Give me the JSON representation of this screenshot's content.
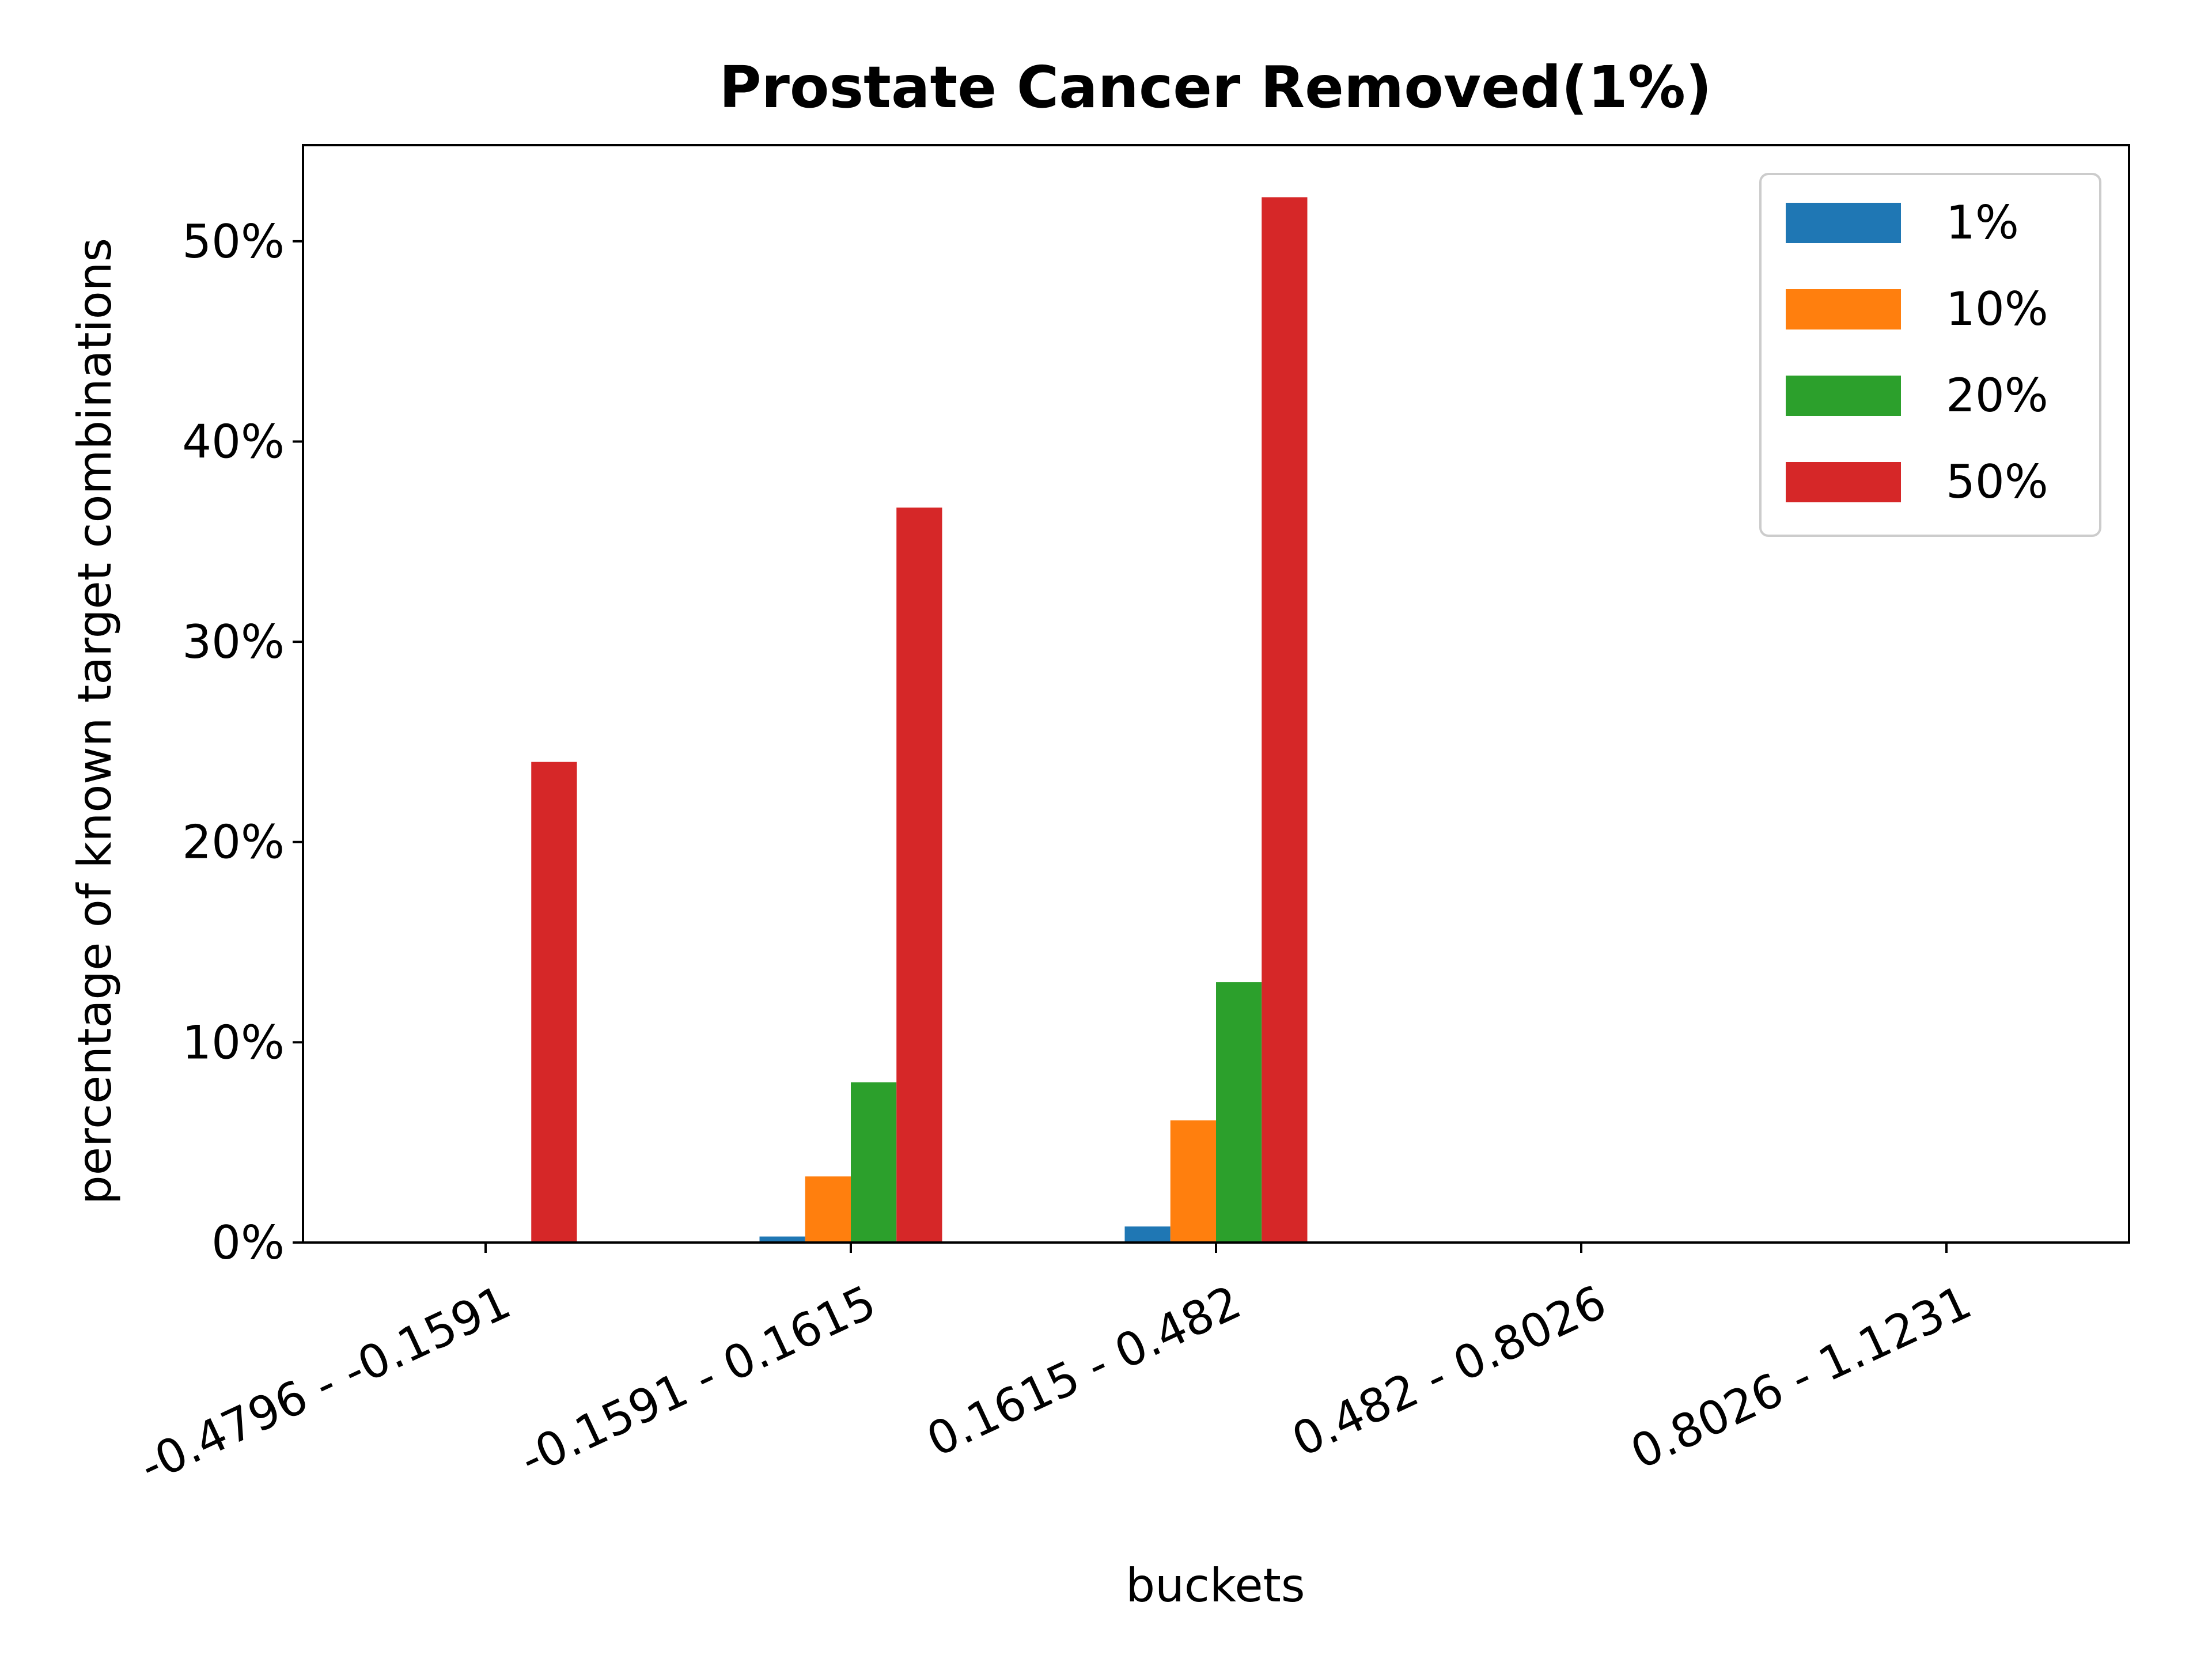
{
  "chart_data": {
    "type": "bar",
    "title": "Prostate Cancer Removed(1%)",
    "xlabel": "buckets",
    "ylabel": "percentage of known target combinations",
    "categories": [
      "-0.4796 - -0.1591",
      "-0.1591 - 0.1615",
      "0.1615 - 0.482",
      "0.482 - 0.8026",
      "0.8026 - 1.1231"
    ],
    "series": [
      {
        "name": "1%",
        "color": "#1f77b4",
        "values": [
          0,
          0.3,
          0.8,
          0,
          0
        ]
      },
      {
        "name": "10%",
        "color": "#ff7f0e",
        "values": [
          0,
          3.3,
          6.1,
          0,
          0
        ]
      },
      {
        "name": "20%",
        "color": "#2ca02c",
        "values": [
          0,
          8.0,
          13.0,
          0,
          0
        ]
      },
      {
        "name": "50%",
        "color": "#d62728",
        "values": [
          24.0,
          36.7,
          52.2,
          0,
          0
        ]
      }
    ],
    "ylim": [
      0,
      54.8
    ],
    "yticks": [
      0,
      10,
      20,
      30,
      40,
      50
    ],
    "ytick_labels": [
      "0%",
      "10%",
      "20%",
      "30%",
      "40%",
      "50%"
    ],
    "grid": false,
    "legend_position": "top-right"
  }
}
